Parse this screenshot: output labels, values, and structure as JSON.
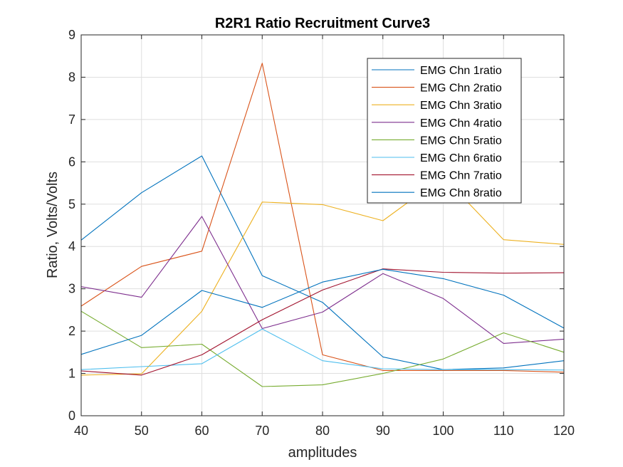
{
  "chart_data": {
    "type": "line",
    "title": "R2R1 Ratio Recruitment Curve3",
    "xlabel": "amplitudes",
    "ylabel": "Ratio, Volts/Volts",
    "x": [
      40,
      50,
      60,
      70,
      80,
      90,
      100,
      110,
      120
    ],
    "xlim": [
      40,
      120
    ],
    "ylim": [
      0,
      9
    ],
    "xticks": [
      "40",
      "50",
      "60",
      "70",
      "80",
      "90",
      "100",
      "110",
      "120"
    ],
    "yticks": [
      "0",
      "1",
      "2",
      "3",
      "4",
      "5",
      "6",
      "7",
      "8",
      "9"
    ],
    "grid": true,
    "legend_position": "top-right",
    "series": [
      {
        "name": "EMG Chn 1ratio",
        "color": "#0072BD",
        "values": [
          4.15,
          5.27,
          6.14,
          3.31,
          2.68,
          1.39,
          1.09,
          1.13,
          1.3
        ]
      },
      {
        "name": "EMG Chn 2ratio",
        "color": "#D95319",
        "values": [
          2.59,
          3.53,
          3.89,
          8.33,
          1.44,
          1.07,
          1.07,
          1.07,
          1.03
        ]
      },
      {
        "name": "EMG Chn 3ratio",
        "color": "#EDB120",
        "values": [
          0.96,
          0.99,
          2.47,
          5.05,
          4.99,
          4.61,
          5.65,
          4.16,
          4.05
        ]
      },
      {
        "name": "EMG Chn 4ratio",
        "color": "#7E2F8E",
        "values": [
          3.05,
          2.8,
          4.71,
          2.06,
          2.45,
          3.36,
          2.77,
          1.71,
          1.81
        ]
      },
      {
        "name": "EMG Chn 5ratio",
        "color": "#77AC30",
        "values": [
          2.47,
          1.61,
          1.69,
          0.69,
          0.73,
          1.0,
          1.34,
          1.96,
          1.5
        ]
      },
      {
        "name": "EMG Chn 6ratio",
        "color": "#4DBEEE",
        "values": [
          1.09,
          1.16,
          1.23,
          2.05,
          1.3,
          1.11,
          1.09,
          1.09,
          1.08
        ]
      },
      {
        "name": "EMG Chn 7ratio",
        "color": "#A2142F",
        "values": [
          1.06,
          0.96,
          1.44,
          2.27,
          2.97,
          3.47,
          3.39,
          3.37,
          3.38
        ]
      },
      {
        "name": "EMG Chn 8ratio",
        "color": "#0072BD",
        "values": [
          1.45,
          1.9,
          2.96,
          2.56,
          3.16,
          3.46,
          3.24,
          2.85,
          2.07
        ]
      }
    ]
  }
}
